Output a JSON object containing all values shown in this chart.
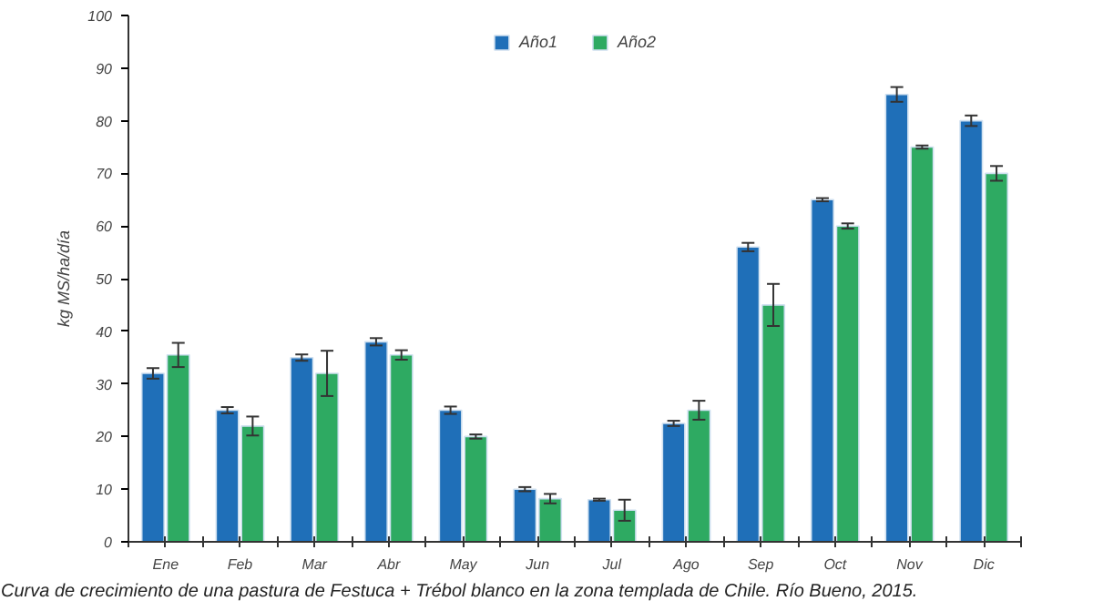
{
  "chart_data": {
    "type": "bar",
    "ylabel": "kg MS/ha/día",
    "categories": [
      "Ene",
      "Feb",
      "Mar",
      "Abr",
      "May",
      "Jun",
      "Jul",
      "Ago",
      "Sep",
      "Oct",
      "Nov",
      "Dic"
    ],
    "series": [
      {
        "name": "Año1",
        "color": "#1f6fb8",
        "values": [
          32,
          25,
          35,
          38,
          25,
          10,
          8,
          22.5,
          56,
          65,
          85,
          80
        ],
        "errors": [
          1,
          0.6,
          0.6,
          0.7,
          0.7,
          0.4,
          0.2,
          0.5,
          0.8,
          0.3,
          1.4,
          1
        ]
      },
      {
        "name": "Año2",
        "color": "#2eaa62",
        "values": [
          35.5,
          22,
          32,
          35.5,
          20,
          8.2,
          6,
          25,
          45,
          60,
          75,
          70
        ],
        "errors": [
          2.3,
          1.8,
          4.3,
          0.9,
          0.4,
          0.9,
          2,
          1.8,
          4,
          0.5,
          0.3,
          1.4
        ]
      }
    ],
    "ylim": [
      0,
      100
    ],
    "yticks": [
      0,
      10,
      20,
      30,
      40,
      50,
      60,
      70,
      80,
      90,
      100
    ],
    "grid": false,
    "legend": "top",
    "annotations": [
      "Curva de crecimiento de una pastura de Festuca + Trébol blanco en la zona templada de Chile. Río Bueno, 2015."
    ]
  }
}
